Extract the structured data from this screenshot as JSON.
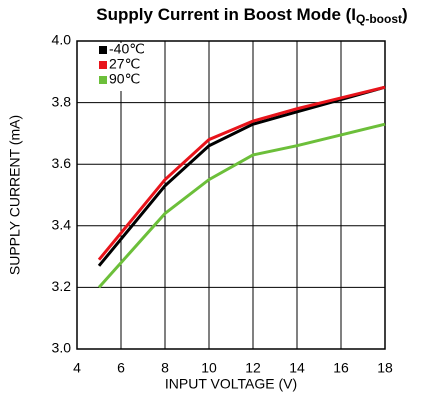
{
  "chart_data": {
    "type": "line",
    "title": {
      "text": "Supply Current in Boost Mode (I",
      "subscript": "Q-boost",
      "suffix": ")"
    },
    "x_label": "INPUT VOLTAGE (V)",
    "y_label": "SUPPLY CURRENT (mA)",
    "x": [
      5,
      8,
      10,
      12,
      14,
      16,
      18
    ],
    "series": [
      {
        "name": "-40℃",
        "color": "#000000",
        "values": [
          3.27,
          3.53,
          3.66,
          3.73,
          3.77,
          3.81,
          3.85
        ]
      },
      {
        "name": "27℃",
        "color": "#e8141b",
        "values": [
          3.29,
          3.55,
          3.68,
          3.74,
          3.78,
          3.815,
          3.85
        ]
      },
      {
        "name": "90℃",
        "color": "#6cbf3a",
        "values": [
          3.2,
          3.44,
          3.55,
          3.63,
          3.66,
          3.695,
          3.73
        ]
      }
    ],
    "xlim": [
      4,
      18
    ],
    "xticks": [
      4,
      6,
      8,
      10,
      12,
      14,
      16,
      18
    ],
    "ylim": [
      3.0,
      4.0
    ],
    "yticks": [
      {
        "value": 3.0,
        "label": "3.0"
      },
      3.2,
      3.4,
      3.6,
      3.8,
      {
        "value": 4.0,
        "label": "4.0"
      }
    ],
    "grid": true,
    "legend": "upper left"
  }
}
